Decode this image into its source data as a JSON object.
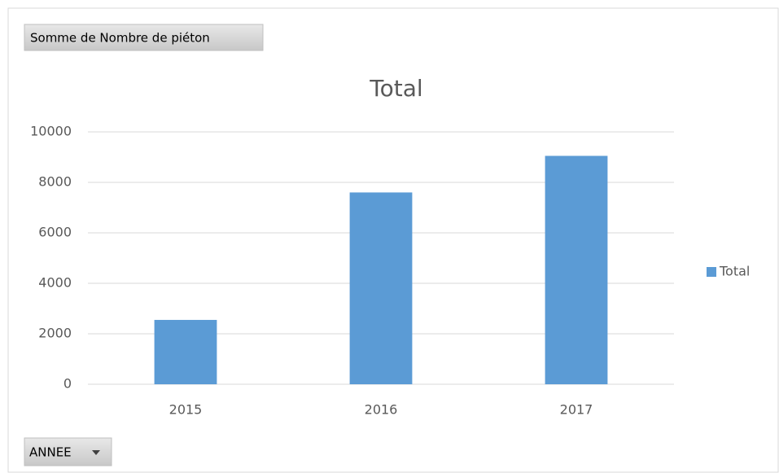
{
  "chart_data": {
    "type": "bar",
    "title": "Total",
    "value_field_button": "Somme de Nombre de piéton",
    "axis_field_button": "ANNEE",
    "categories": [
      "2015",
      "2016",
      "2017"
    ],
    "series": [
      {
        "name": "Total",
        "color": "#5b9bd5",
        "values": [
          2550,
          7600,
          9050
        ]
      }
    ],
    "ylim": [
      0,
      10000
    ],
    "yticks": [
      0,
      2000,
      4000,
      6000,
      8000,
      10000
    ],
    "grid": true,
    "legend": "right"
  }
}
